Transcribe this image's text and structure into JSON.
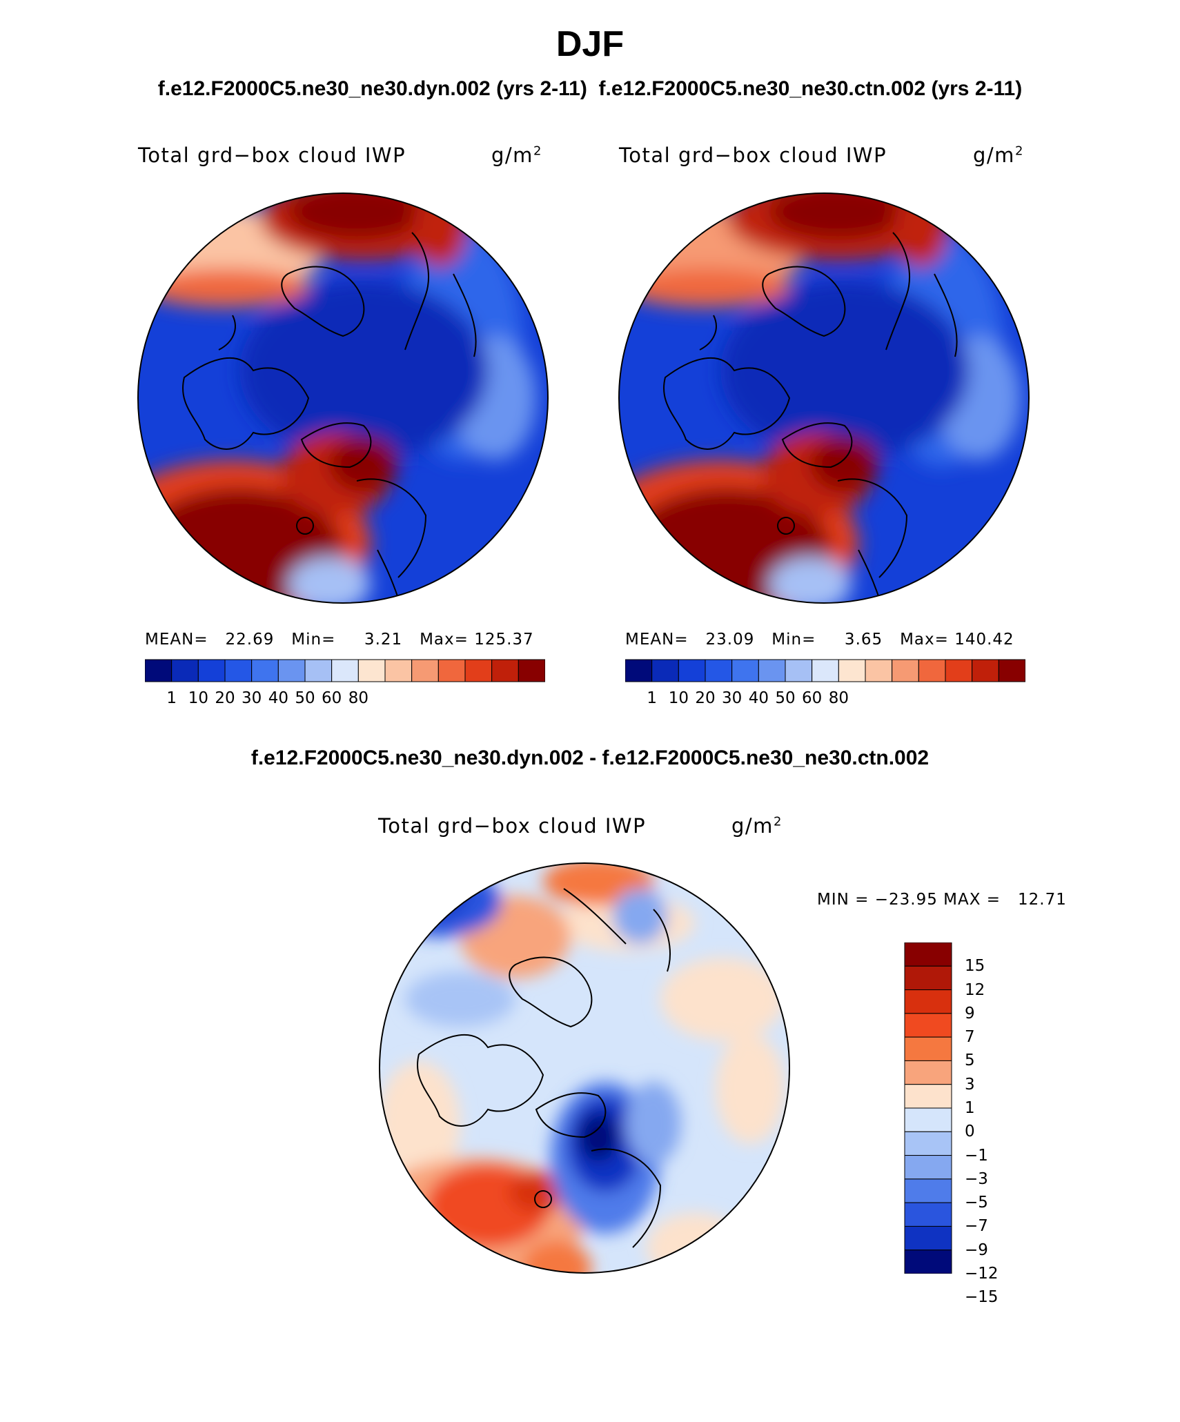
{
  "header": {
    "season": "DJF",
    "subtitle": "f.e12.F2000C5.ne30_ne30.dyn.002 (yrs 2-11)  f.e12.F2000C5.ne30_ne30.ctn.002 (yrs 2-11)",
    "diff_title": "f.e12.F2000C5.ne30_ne30.dyn.002 - f.e12.F2000C5.ne30_ne30.ctn.002"
  },
  "panels": {
    "left": {
      "title": "Total grd−box cloud IWP",
      "units_base": "g/m",
      "units_exp": "2",
      "stats": "MEAN=   22.69   Min=     3.21   Max= 125.37"
    },
    "right": {
      "title": "Total grd−box cloud IWP",
      "units_base": "g/m",
      "units_exp": "2",
      "stats": "MEAN=   23.09   Min=     3.65   Max= 140.42"
    },
    "diff": {
      "title": "Total grd−box cloud IWP",
      "units_base": "g/m",
      "units_exp": "2",
      "stats": "MIN = −23.95 MAX =   12.71"
    }
  },
  "colorbar_abs": {
    "colors": [
      "#000a7a",
      "#0a2ab8",
      "#1440d8",
      "#2457e6",
      "#3f74ee",
      "#6a94f0",
      "#a6c0f5",
      "#dbe7fb",
      "#fde5d0",
      "#fbc4a4",
      "#f69a73",
      "#f0673d",
      "#e23e1a",
      "#c0200a",
      "#880000"
    ],
    "labels": [
      "1",
      "10",
      "20",
      "30",
      "40",
      "50",
      "60",
      "80"
    ]
  },
  "colorbar_diff": {
    "colors": [
      "#880000",
      "#b01808",
      "#d8300e",
      "#f04a20",
      "#f57840",
      "#f8a47c",
      "#fde2cc",
      "#d5e5fb",
      "#a8c4f6",
      "#85a8f0",
      "#4f7cea",
      "#2a55de",
      "#0f33c2",
      "#000a7a"
    ],
    "labels": [
      "15",
      "12",
      "9",
      "7",
      "5",
      "3",
      "1",
      "0",
      "−1",
      "−3",
      "−5",
      "−7",
      "−9",
      "−12",
      "−15"
    ]
  }
}
